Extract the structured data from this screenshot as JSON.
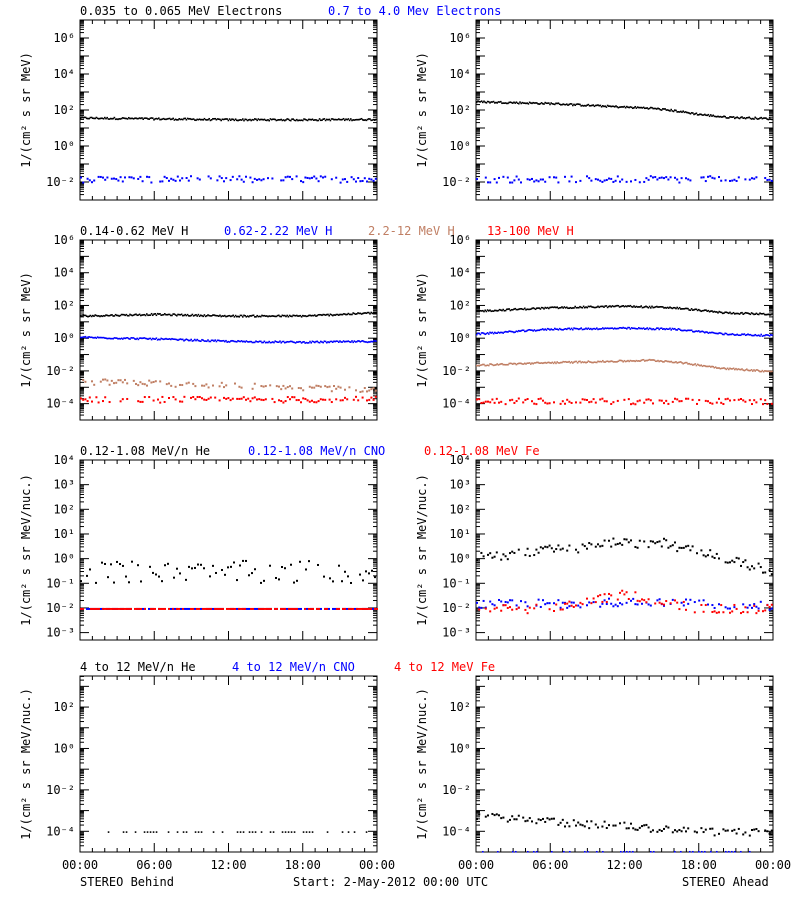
{
  "figure": {
    "footer_left": "STEREO Behind",
    "footer_center": "Start:  2-May-2012 00:00 UTC",
    "footer_right": "STEREO Ahead"
  },
  "colors": {
    "black": "#000000",
    "blue": "#0000ff",
    "tan": "#c07f64",
    "red": "#ff0000"
  },
  "chart_data": [
    {
      "type": "scatter",
      "row": 0,
      "side": "behind",
      "yscale": "log",
      "legend": [
        {
          "text": "0.035 to 0.065 MeV Electrons",
          "color": "#000000"
        },
        {
          "text": "0.7 to 4.0 Mev Electrons",
          "color": "#0000ff"
        }
      ],
      "ylabel": "1/(cm² s sr MeV)",
      "ylim_log": [
        -3,
        7
      ],
      "yticks": [
        {
          "exp": -2,
          "label": "10⁻²"
        },
        {
          "exp": 0,
          "label": "10⁰"
        },
        {
          "exp": 2,
          "label": "10²"
        },
        {
          "exp": 4,
          "label": "10⁴"
        },
        {
          "exp": 6,
          "label": "10⁶"
        }
      ],
      "x_hours": [
        0,
        24
      ],
      "xtick_labels": [
        "00:00",
        "06:00",
        "12:00",
        "18:00",
        "00:00"
      ],
      "series": [
        {
          "color": "#000000",
          "x": [
            0,
            6,
            12,
            18,
            24
          ],
          "log10_y": [
            1.6,
            1.55,
            1.5,
            1.5,
            1.52
          ],
          "style": "band"
        },
        {
          "color": "#0000ff",
          "x": [
            0,
            6,
            12,
            18,
            24
          ],
          "log10_y": [
            -1.8,
            -1.8,
            -1.8,
            -1.8,
            -1.8
          ],
          "style": "noisy"
        }
      ]
    },
    {
      "type": "scatter",
      "row": 0,
      "side": "ahead",
      "yscale": "log",
      "legend": [],
      "ylabel": "1/(cm² s sr MeV)",
      "ylim_log": [
        -3,
        7
      ],
      "yticks": [
        {
          "exp": -2,
          "label": "10⁻²"
        },
        {
          "exp": 0,
          "label": "10⁰"
        },
        {
          "exp": 2,
          "label": "10²"
        },
        {
          "exp": 4,
          "label": "10⁴"
        },
        {
          "exp": 6,
          "label": "10⁶"
        }
      ],
      "x_hours": [
        0,
        24
      ],
      "xtick_labels": [
        "00:00",
        "06:00",
        "12:00",
        "18:00",
        "00:00"
      ],
      "series": [
        {
          "color": "#000000",
          "x": [
            0,
            6,
            12,
            14,
            16,
            18,
            20,
            24
          ],
          "log10_y": [
            2.5,
            2.4,
            2.2,
            2.15,
            2.0,
            1.8,
            1.65,
            1.55
          ],
          "style": "band"
        },
        {
          "color": "#0000ff",
          "x": [
            0,
            6,
            12,
            18,
            24
          ],
          "log10_y": [
            -1.8,
            -1.8,
            -1.8,
            -1.8,
            -1.8
          ],
          "style": "noisy"
        }
      ]
    },
    {
      "type": "scatter",
      "row": 1,
      "side": "behind",
      "yscale": "log",
      "legend": [
        {
          "text": "0.14-0.62 MeV H",
          "color": "#000000"
        },
        {
          "text": "0.62-2.22 MeV H",
          "color": "#0000ff"
        },
        {
          "text": "2.2-12 MeV H",
          "color": "#c07f64"
        },
        {
          "text": "13-100 MeV H",
          "color": "#ff0000"
        }
      ],
      "ylabel": "1/(cm² s sr MeV)",
      "ylim_log": [
        -5,
        6
      ],
      "yticks": [
        {
          "exp": -4,
          "label": "10⁻⁴"
        },
        {
          "exp": -2,
          "label": "10⁻²"
        },
        {
          "exp": 0,
          "label": "10⁰"
        },
        {
          "exp": 2,
          "label": "10²"
        },
        {
          "exp": 4,
          "label": "10⁴"
        },
        {
          "exp": 6,
          "label": "10⁶"
        }
      ],
      "x_hours": [
        0,
        24
      ],
      "xtick_labels": [
        "00:00",
        "06:00",
        "12:00",
        "18:00",
        "00:00"
      ],
      "series": [
        {
          "color": "#000000",
          "x": [
            0,
            6,
            12,
            18,
            24
          ],
          "log10_y": [
            1.4,
            1.5,
            1.4,
            1.4,
            1.6
          ],
          "style": "band"
        },
        {
          "color": "#0000ff",
          "x": [
            0,
            6,
            12,
            18,
            24
          ],
          "log10_y": [
            0.1,
            0.0,
            -0.15,
            -0.2,
            -0.15
          ],
          "style": "band"
        },
        {
          "color": "#c07f64",
          "x": [
            0,
            6,
            12,
            18,
            24
          ],
          "log10_y": [
            -2.6,
            -2.7,
            -2.85,
            -2.95,
            -3.1
          ],
          "style": "noisy"
        },
        {
          "color": "#ff0000",
          "x": [
            0,
            6,
            12,
            18,
            24
          ],
          "log10_y": [
            -3.7,
            -3.7,
            -3.7,
            -3.7,
            -3.7
          ],
          "style": "noisy"
        }
      ]
    },
    {
      "type": "scatter",
      "row": 1,
      "side": "ahead",
      "yscale": "log",
      "legend": [],
      "ylabel": "1/(cm² s sr MeV)",
      "ylim_log": [
        -5,
        6
      ],
      "yticks": [
        {
          "exp": -4,
          "label": "10⁻⁴"
        },
        {
          "exp": -2,
          "label": "10⁻²"
        },
        {
          "exp": 0,
          "label": "10⁰"
        },
        {
          "exp": 2,
          "label": "10²"
        },
        {
          "exp": 4,
          "label": "10⁴"
        },
        {
          "exp": 6,
          "label": "10⁶"
        }
      ],
      "x_hours": [
        0,
        24
      ],
      "xtick_labels": [
        "00:00",
        "06:00",
        "12:00",
        "18:00",
        "00:00"
      ],
      "series": [
        {
          "color": "#000000",
          "x": [
            0,
            6,
            12,
            16,
            20,
            24
          ],
          "log10_y": [
            1.7,
            1.9,
            2.0,
            1.9,
            1.6,
            1.5
          ],
          "style": "band"
        },
        {
          "color": "#0000ff",
          "x": [
            0,
            6,
            12,
            16,
            20,
            24
          ],
          "log10_y": [
            0.3,
            0.6,
            0.65,
            0.6,
            0.3,
            0.2
          ],
          "style": "band"
        },
        {
          "color": "#c07f64",
          "x": [
            0,
            6,
            12,
            14,
            16,
            20,
            24
          ],
          "log10_y": [
            -1.6,
            -1.45,
            -1.35,
            -1.3,
            -1.4,
            -1.8,
            -2.0
          ],
          "style": "band"
        },
        {
          "color": "#ff0000",
          "x": [
            0,
            6,
            12,
            18,
            24
          ],
          "log10_y": [
            -3.8,
            -3.8,
            -3.8,
            -3.8,
            -3.8
          ],
          "style": "noisy"
        }
      ]
    },
    {
      "type": "scatter",
      "row": 2,
      "side": "behind",
      "yscale": "log",
      "legend": [
        {
          "text": "0.12-1.08 MeV/n He",
          "color": "#000000"
        },
        {
          "text": "0.12-1.08 MeV/n CNO",
          "color": "#0000ff"
        },
        {
          "text": "0.12-1.08 MeV Fe",
          "color": "#ff0000"
        }
      ],
      "ylabel": "1/(cm² s sr MeV/nuc.)",
      "ylim_log": [
        -3.3,
        4
      ],
      "yticks": [
        {
          "exp": -3,
          "label": "10⁻³"
        },
        {
          "exp": -2,
          "label": "10⁻²"
        },
        {
          "exp": -1,
          "label": "10⁻¹"
        },
        {
          "exp": 0,
          "label": "10⁰"
        },
        {
          "exp": 1,
          "label": "10¹"
        },
        {
          "exp": 2,
          "label": "10²"
        },
        {
          "exp": 3,
          "label": "10³"
        },
        {
          "exp": 4,
          "label": "10⁴"
        }
      ],
      "x_hours": [
        0,
        24
      ],
      "xtick_labels": [
        "00:00",
        "06:00",
        "12:00",
        "18:00",
        "00:00"
      ],
      "series": [
        {
          "color": "#000000",
          "x": [
            0,
            6,
            12,
            18,
            24
          ],
          "log10_y": [
            -0.5,
            -0.5,
            -0.5,
            -0.5,
            -0.5
          ],
          "style": "sparse"
        },
        {
          "color": "#0000ff",
          "x": [
            0,
            6,
            12,
            18,
            24
          ],
          "log10_y": [
            -2.0,
            -2.0,
            -2.0,
            -2.0,
            -2.0
          ],
          "style": "line"
        },
        {
          "color": "#ff0000",
          "x": [
            0,
            6,
            12,
            18,
            24
          ],
          "log10_y": [
            -2.0,
            -2.0,
            -2.0,
            -2.0,
            -2.0
          ],
          "style": "line"
        }
      ]
    },
    {
      "type": "scatter",
      "row": 2,
      "side": "ahead",
      "yscale": "log",
      "legend": [],
      "ylabel": "1/(cm² s sr MeV/nuc.)",
      "ylim_log": [
        -3.3,
        4
      ],
      "yticks": [
        {
          "exp": -3,
          "label": "10⁻³"
        },
        {
          "exp": -2,
          "label": "10⁻²"
        },
        {
          "exp": -1,
          "label": "10⁻¹"
        },
        {
          "exp": 0,
          "label": "10⁰"
        },
        {
          "exp": 1,
          "label": "10¹"
        },
        {
          "exp": 2,
          "label": "10²"
        },
        {
          "exp": 3,
          "label": "10³"
        },
        {
          "exp": 4,
          "label": "10⁴"
        }
      ],
      "x_hours": [
        0,
        24
      ],
      "xtick_labels": [
        "00:00",
        "06:00",
        "12:00",
        "18:00",
        "00:00"
      ],
      "series": [
        {
          "color": "#000000",
          "x": [
            0,
            3,
            6,
            9,
            11,
            13,
            15,
            17,
            19,
            21,
            24
          ],
          "log10_y": [
            0.1,
            0.2,
            0.4,
            0.5,
            0.7,
            0.6,
            0.7,
            0.4,
            0.2,
            -0.1,
            -0.5
          ],
          "style": "noisy"
        },
        {
          "color": "#0000ff",
          "x": [
            0,
            6,
            12,
            18,
            24
          ],
          "log10_y": [
            -1.8,
            -1.8,
            -1.7,
            -1.8,
            -1.9
          ],
          "style": "noisy"
        },
        {
          "color": "#ff0000",
          "x": [
            0,
            6,
            12,
            18,
            24
          ],
          "log10_y": [
            -2.0,
            -2.0,
            -1.4,
            -2.0,
            -2.0
          ],
          "style": "noisy"
        }
      ]
    },
    {
      "type": "scatter",
      "row": 3,
      "side": "behind",
      "yscale": "log",
      "legend": [
        {
          "text": "4 to 12 MeV/n He",
          "color": "#000000"
        },
        {
          "text": "4 to 12 MeV/n CNO",
          "color": "#0000ff"
        },
        {
          "text": "4 to 12 MeV Fe",
          "color": "#ff0000"
        }
      ],
      "ylabel": "1/(cm² s sr MeV/nuc.)",
      "ylim_log": [
        -5,
        3.5
      ],
      "yticks": [
        {
          "exp": -4,
          "label": "10⁻⁴"
        },
        {
          "exp": -2,
          "label": "10⁻²"
        },
        {
          "exp": 0,
          "label": "10⁰"
        },
        {
          "exp": 2,
          "label": "10²"
        }
      ],
      "x_hours": [
        0,
        24
      ],
      "xtick_labels": [
        "00:00",
        "06:00",
        "12:00",
        "18:00",
        "00:00"
      ],
      "series": [
        {
          "color": "#000000",
          "x": [
            2,
            24
          ],
          "log10_y": [
            -4.0,
            -4.0
          ],
          "style": "sparse-low"
        }
      ]
    },
    {
      "type": "scatter",
      "row": 3,
      "side": "ahead",
      "yscale": "log",
      "legend": [],
      "ylabel": "1/(cm² s sr MeV/nuc.)",
      "ylim_log": [
        -5,
        3.5
      ],
      "yticks": [
        {
          "exp": -4,
          "label": "10⁻⁴"
        },
        {
          "exp": -2,
          "label": "10⁻²"
        },
        {
          "exp": 0,
          "label": "10⁰"
        },
        {
          "exp": 2,
          "label": "10²"
        }
      ],
      "x_hours": [
        0,
        24
      ],
      "xtick_labels": [
        "00:00",
        "06:00",
        "12:00",
        "18:00",
        "00:00"
      ],
      "series": [
        {
          "color": "#000000",
          "x": [
            0,
            4,
            8,
            12,
            16,
            20,
            24
          ],
          "log10_y": [
            -3.2,
            -3.4,
            -3.6,
            -3.7,
            -3.9,
            -4.0,
            -4.0
          ],
          "style": "noisy"
        },
        {
          "color": "#0000ff",
          "x": [
            0,
            24
          ],
          "log10_y": [
            -4.95,
            -4.95
          ],
          "style": "sparse-low"
        }
      ]
    }
  ]
}
